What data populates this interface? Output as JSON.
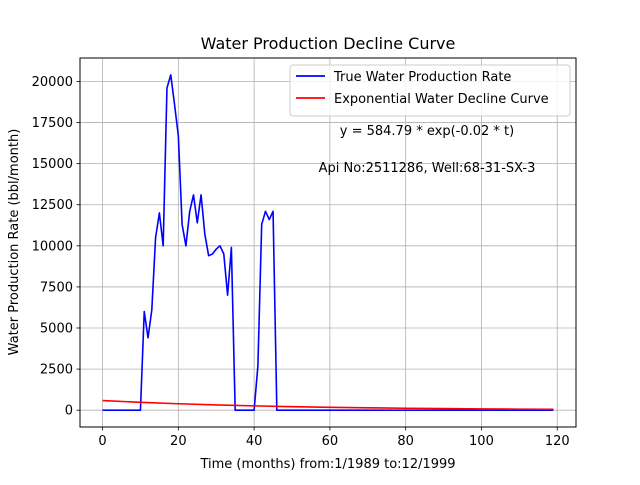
{
  "chart_data": {
    "type": "line",
    "title": "Water Production Decline Curve",
    "xlabel": "Time (months) from:1/1989 to:12/1999",
    "ylabel": "Water Production Rate (bbl/month)",
    "xlim": [
      -5.95,
      124.95
    ],
    "ylim": [
      -1022.5,
      21427.5
    ],
    "xticks": [
      0,
      20,
      40,
      60,
      80,
      100,
      120
    ],
    "xtick_labels": [
      "0",
      "20",
      "40",
      "60",
      "80",
      "100",
      "120"
    ],
    "yticks": [
      0,
      2500,
      5000,
      7500,
      10000,
      12500,
      15000,
      17500,
      20000
    ],
    "ytick_labels": [
      "0",
      "2500",
      "5000",
      "7500",
      "10000",
      "12500",
      "15000",
      "17500",
      "20000"
    ],
    "grid": true,
    "legend_position": "upper-right",
    "annotations": [
      "y = 584.79 * exp(-0.02 * t)",
      "Api No:2511286, Well:68-31-SX-3"
    ],
    "series": [
      {
        "name": "True Water Production Rate",
        "color": "#0000ff",
        "x": [
          0,
          1,
          2,
          3,
          4,
          5,
          6,
          7,
          8,
          9,
          10,
          11,
          12,
          13,
          14,
          15,
          16,
          17,
          18,
          19,
          20,
          21,
          22,
          23,
          24,
          25,
          26,
          27,
          28,
          29,
          30,
          31,
          32,
          33,
          34,
          35,
          36,
          37,
          38,
          39,
          40,
          41,
          42,
          43,
          44,
          45,
          46,
          47,
          48,
          49,
          50,
          51,
          52,
          53,
          54,
          55,
          56,
          57,
          58,
          59,
          60,
          61,
          62,
          63,
          64,
          65,
          66,
          67,
          68,
          69,
          70,
          71,
          72,
          73,
          74,
          75,
          76,
          77,
          78,
          79,
          80,
          81,
          82,
          83,
          84,
          85,
          86,
          87,
          88,
          89,
          90,
          91,
          92,
          93,
          94,
          95,
          96,
          97,
          98,
          99,
          100,
          101,
          102,
          103,
          104,
          105,
          106,
          107,
          108,
          109,
          110,
          111,
          112,
          113,
          114,
          115,
          116,
          117,
          118,
          119
        ],
        "y": [
          0,
          0,
          0,
          0,
          0,
          0,
          0,
          0,
          0,
          0,
          0,
          6000,
          4400,
          6100,
          10500,
          12000,
          10000,
          19600,
          20400,
          18600,
          16700,
          11300,
          10000,
          12100,
          13100,
          11400,
          13100,
          10700,
          9400,
          9500,
          9800,
          10000,
          9500,
          7000,
          9900,
          0,
          0,
          0,
          0,
          0,
          0,
          2700,
          11300,
          12100,
          11600,
          12100,
          0,
          0,
          0,
          0,
          0,
          0,
          0,
          0,
          0,
          0,
          0,
          0,
          0,
          0,
          0,
          0,
          0,
          0,
          0,
          0,
          0,
          0,
          0,
          0,
          0,
          0,
          0,
          0,
          0,
          0,
          0,
          0,
          0,
          0,
          0,
          0,
          0,
          0,
          0,
          0,
          0,
          0,
          0,
          0,
          0,
          0,
          0,
          0,
          0,
          0,
          0,
          0,
          0,
          0,
          0,
          0,
          0,
          0,
          0,
          0,
          0,
          0,
          0,
          0,
          0,
          0,
          0,
          0,
          0,
          0,
          0,
          0,
          0,
          0
        ]
      },
      {
        "name": "Exponential Water Decline Curve",
        "color": "#ff0000",
        "x": [
          0,
          10,
          20,
          30,
          40,
          50,
          60,
          70,
          80,
          90,
          100,
          110,
          119
        ],
        "y": [
          584.79,
          478.8,
          392.0,
          320.9,
          262.8,
          215.1,
          176.1,
          144.2,
          118.1,
          96.7,
          79.1,
          64.8,
          53.8
        ]
      }
    ]
  }
}
